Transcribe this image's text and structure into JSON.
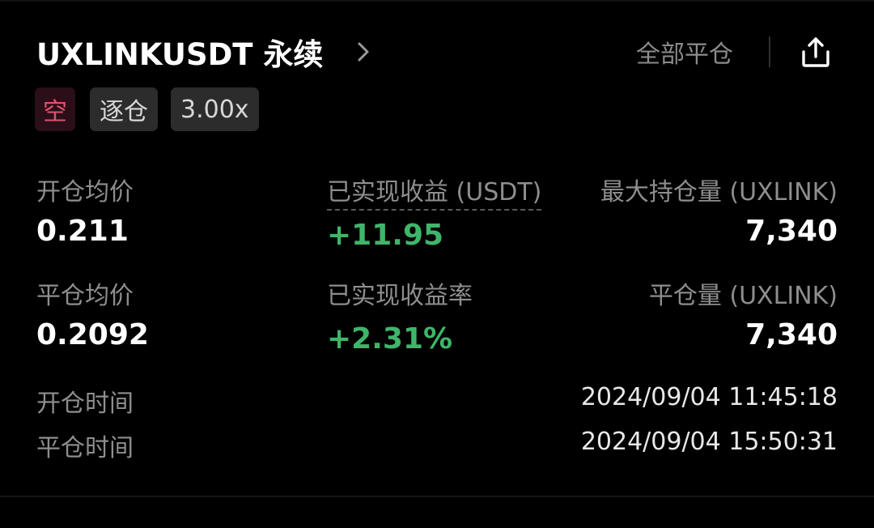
{
  "header": {
    "title": "UXLINKUSDT 永续",
    "close_all_label": "全部平仓"
  },
  "tags": {
    "side": "空",
    "margin_mode": "逐仓",
    "leverage": "3.00x"
  },
  "stats": {
    "open_avg_price_label": "开仓均价",
    "open_avg_price": "0.211",
    "realized_pnl_label": "已实现收益 (USDT)",
    "realized_pnl": "+11.95",
    "max_position_label": "最大持仓量 (UXLINK)",
    "max_position": "7,340",
    "close_avg_price_label": "平仓均价",
    "close_avg_price": "0.2092",
    "realized_pnl_rate_label": "已实现收益率",
    "realized_pnl_rate": "+2.31%",
    "closed_qty_label": "平仓量 (UXLINK)",
    "closed_qty": "7,340"
  },
  "times": {
    "open_time_label": "开仓时间",
    "open_time": "2024/09/04 11:45:18",
    "close_time_label": "平仓时间",
    "close_time": "2024/09/04 15:50:31"
  },
  "colors": {
    "positive": "#3fb56a",
    "short": "#e0526f",
    "background": "#000000"
  },
  "icons": {
    "chevron": "chevron-right-icon",
    "share": "share-icon"
  }
}
